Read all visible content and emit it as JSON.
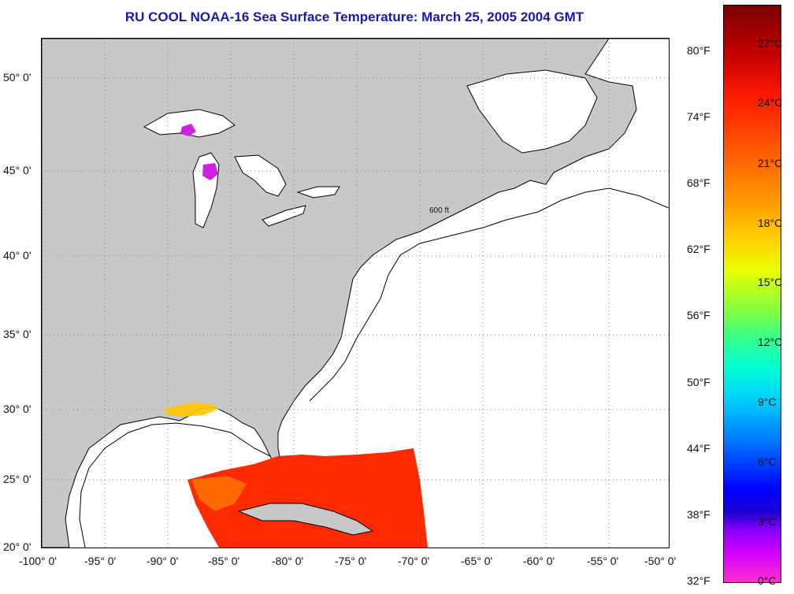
{
  "title": "RU COOL  NOAA-16  Sea Surface Temperature:  March 25, 2005 2004 GMT",
  "map": {
    "lat_labels": [
      "50° 0'",
      "45° 0'",
      "40° 0'",
      "35° 0'",
      "30° 0'",
      "25° 0'",
      "20° 0'"
    ],
    "lon_labels": [
      "-100° 0'",
      "-95° 0'",
      "-90° 0'",
      "-85° 0'",
      "-80° 0'",
      "-75° 0'",
      "-70° 0'",
      "-65° 0'",
      "-60° 0'",
      "-55° 0'",
      "-50° 0'"
    ],
    "contour_label": "600 ft",
    "colors": {
      "land": "#c8c8c8",
      "water_no_data": "#ffffff",
      "coast": "#000000"
    }
  },
  "colorbar": {
    "fahrenheit": [
      "80°F",
      "74°F",
      "68°F",
      "62°F",
      "56°F",
      "50°F",
      "44°F",
      "38°F",
      "32°F"
    ],
    "celsius": [
      "27°C",
      "24°C",
      "21°C",
      "18°C",
      "15°C",
      "12°C",
      "9°C",
      "6°C",
      "3°C",
      "0°C"
    ]
  }
}
